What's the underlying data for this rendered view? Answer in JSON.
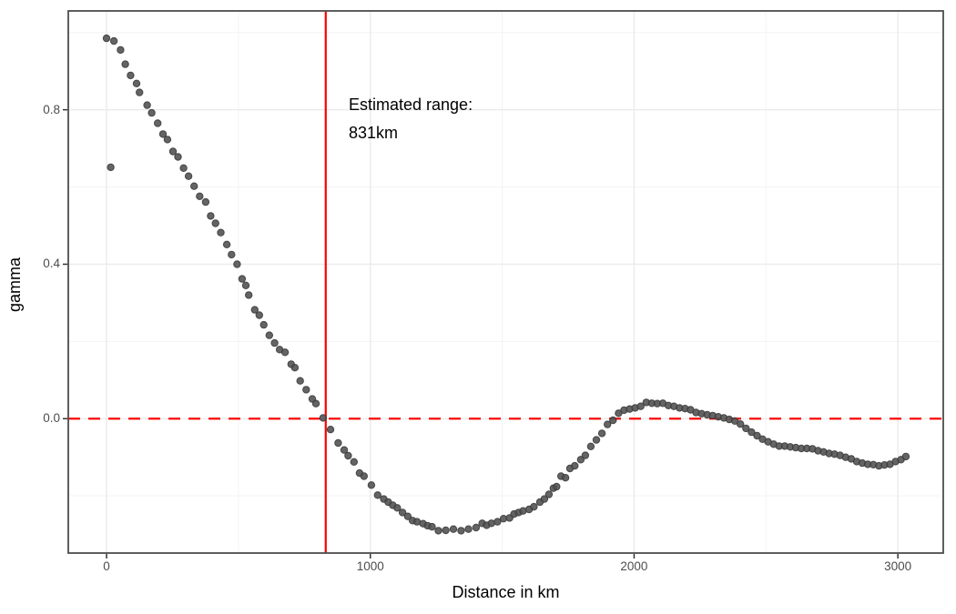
{
  "chart_data": {
    "type": "scatter",
    "title": "",
    "xlabel": "Distance in km",
    "ylabel": "gamma",
    "xlim": [
      -145,
      3172
    ],
    "ylim": [
      -0.348,
      1.056
    ],
    "grid": true,
    "legend_position": "none",
    "x_tick_values": [
      0,
      1000,
      2000,
      3000
    ],
    "x_tick_labels": [
      "0",
      "1000",
      "2000",
      "3000"
    ],
    "x_minor_ticks": [
      500,
      1500,
      2500
    ],
    "y_tick_values": [
      0.0,
      0.4,
      0.8
    ],
    "y_tick_labels": [
      "0.0",
      "0.4",
      "0.8"
    ],
    "y_minor_ticks": [
      -0.2,
      0.2,
      0.6,
      1.0
    ],
    "annotation": {
      "line1": "Estimated range:",
      "line2": "831km"
    },
    "vline": {
      "x": 831,
      "color": "#ff0000",
      "style": "solid"
    },
    "hline": {
      "y": 0.0,
      "color": "#ff0000",
      "style": "dashed"
    },
    "point_color": "#4f4f4f",
    "point_edge_color": "#3c3c3c",
    "points": [
      [
        0,
        0.985
      ],
      [
        16,
        0.651
      ],
      [
        28,
        0.978
      ],
      [
        53,
        0.955
      ],
      [
        71,
        0.918
      ],
      [
        91,
        0.889
      ],
      [
        114,
        0.868
      ],
      [
        125,
        0.845
      ],
      [
        154,
        0.812
      ],
      [
        171,
        0.792
      ],
      [
        194,
        0.765
      ],
      [
        214,
        0.737
      ],
      [
        231,
        0.723
      ],
      [
        252,
        0.692
      ],
      [
        271,
        0.678
      ],
      [
        292,
        0.649
      ],
      [
        311,
        0.628
      ],
      [
        332,
        0.602
      ],
      [
        353,
        0.576
      ],
      [
        376,
        0.561
      ],
      [
        395,
        0.525
      ],
      [
        413,
        0.506
      ],
      [
        433,
        0.482
      ],
      [
        456,
        0.451
      ],
      [
        474,
        0.425
      ],
      [
        495,
        0.4
      ],
      [
        514,
        0.362
      ],
      [
        528,
        0.345
      ],
      [
        539,
        0.32
      ],
      [
        562,
        0.282
      ],
      [
        579,
        0.268
      ],
      [
        596,
        0.243
      ],
      [
        617,
        0.216
      ],
      [
        637,
        0.196
      ],
      [
        656,
        0.179
      ],
      [
        677,
        0.172
      ],
      [
        700,
        0.141
      ],
      [
        714,
        0.132
      ],
      [
        734,
        0.098
      ],
      [
        757,
        0.075
      ],
      [
        780,
        0.051
      ],
      [
        794,
        0.039
      ],
      [
        821,
        0.002
      ],
      [
        849,
        -0.028
      ],
      [
        878,
        -0.063
      ],
      [
        901,
        -0.081
      ],
      [
        916,
        -0.096
      ],
      [
        938,
        -0.112
      ],
      [
        959,
        -0.141
      ],
      [
        976,
        -0.149
      ],
      [
        1004,
        -0.172
      ],
      [
        1028,
        -0.198
      ],
      [
        1051,
        -0.208
      ],
      [
        1068,
        -0.216
      ],
      [
        1085,
        -0.224
      ],
      [
        1102,
        -0.231
      ],
      [
        1122,
        -0.243
      ],
      [
        1142,
        -0.253
      ],
      [
        1160,
        -0.264
      ],
      [
        1177,
        -0.267
      ],
      [
        1200,
        -0.272
      ],
      [
        1217,
        -0.277
      ],
      [
        1234,
        -0.28
      ],
      [
        1258,
        -0.29
      ],
      [
        1286,
        -0.289
      ],
      [
        1315,
        -0.286
      ],
      [
        1344,
        -0.29
      ],
      [
        1372,
        -0.286
      ],
      [
        1401,
        -0.282
      ],
      [
        1424,
        -0.271
      ],
      [
        1441,
        -0.276
      ],
      [
        1459,
        -0.271
      ],
      [
        1482,
        -0.267
      ],
      [
        1505,
        -0.259
      ],
      [
        1528,
        -0.257
      ],
      [
        1545,
        -0.247
      ],
      [
        1562,
        -0.243
      ],
      [
        1579,
        -0.239
      ],
      [
        1602,
        -0.235
      ],
      [
        1620,
        -0.228
      ],
      [
        1643,
        -0.216
      ],
      [
        1660,
        -0.208
      ],
      [
        1677,
        -0.196
      ],
      [
        1694,
        -0.18
      ],
      [
        1706,
        -0.176
      ],
      [
        1723,
        -0.149
      ],
      [
        1740,
        -0.153
      ],
      [
        1757,
        -0.129
      ],
      [
        1775,
        -0.122
      ],
      [
        1798,
        -0.106
      ],
      [
        1815,
        -0.095
      ],
      [
        1836,
        -0.072
      ],
      [
        1857,
        -0.055
      ],
      [
        1878,
        -0.038
      ],
      [
        1899,
        -0.015
      ],
      [
        1920,
        -0.004
      ],
      [
        1941,
        0.014
      ],
      [
        1962,
        0.022
      ],
      [
        1983,
        0.025
      ],
      [
        2004,
        0.028
      ],
      [
        2025,
        0.032
      ],
      [
        2046,
        0.042
      ],
      [
        2067,
        0.04
      ],
      [
        2088,
        0.039
      ],
      [
        2109,
        0.04
      ],
      [
        2130,
        0.034
      ],
      [
        2151,
        0.032
      ],
      [
        2172,
        0.028
      ],
      [
        2193,
        0.026
      ],
      [
        2214,
        0.023
      ],
      [
        2235,
        0.016
      ],
      [
        2256,
        0.013
      ],
      [
        2277,
        0.01
      ],
      [
        2298,
        0.008
      ],
      [
        2319,
        0.005
      ],
      [
        2340,
        0.002
      ],
      [
        2361,
        -0.002
      ],
      [
        2382,
        -0.006
      ],
      [
        2403,
        -0.014
      ],
      [
        2424,
        -0.025
      ],
      [
        2445,
        -0.035
      ],
      [
        2466,
        -0.044
      ],
      [
        2487,
        -0.053
      ],
      [
        2508,
        -0.06
      ],
      [
        2529,
        -0.066
      ],
      [
        2550,
        -0.071
      ],
      [
        2571,
        -0.071
      ],
      [
        2592,
        -0.073
      ],
      [
        2613,
        -0.075
      ],
      [
        2634,
        -0.077
      ],
      [
        2655,
        -0.077
      ],
      [
        2676,
        -0.078
      ],
      [
        2697,
        -0.083
      ],
      [
        2718,
        -0.086
      ],
      [
        2739,
        -0.09
      ],
      [
        2760,
        -0.092
      ],
      [
        2781,
        -0.095
      ],
      [
        2802,
        -0.1
      ],
      [
        2823,
        -0.104
      ],
      [
        2844,
        -0.111
      ],
      [
        2865,
        -0.115
      ],
      [
        2886,
        -0.118
      ],
      [
        2907,
        -0.119
      ],
      [
        2928,
        -0.122
      ],
      [
        2949,
        -0.12
      ],
      [
        2970,
        -0.118
      ],
      [
        2991,
        -0.111
      ],
      [
        3012,
        -0.106
      ],
      [
        3030,
        -0.098
      ]
    ]
  },
  "colors": {
    "background": "#ffffff",
    "panel_background": "#ffffff",
    "panel_border": "#4d4d4d",
    "grid_major": "#ebebeb",
    "grid_minor": "#f3f3f3",
    "tick_mark": "#333333",
    "tick_text": "#4d4d4d",
    "accent_red": "#ff0000",
    "point": "#4f4f4f"
  }
}
